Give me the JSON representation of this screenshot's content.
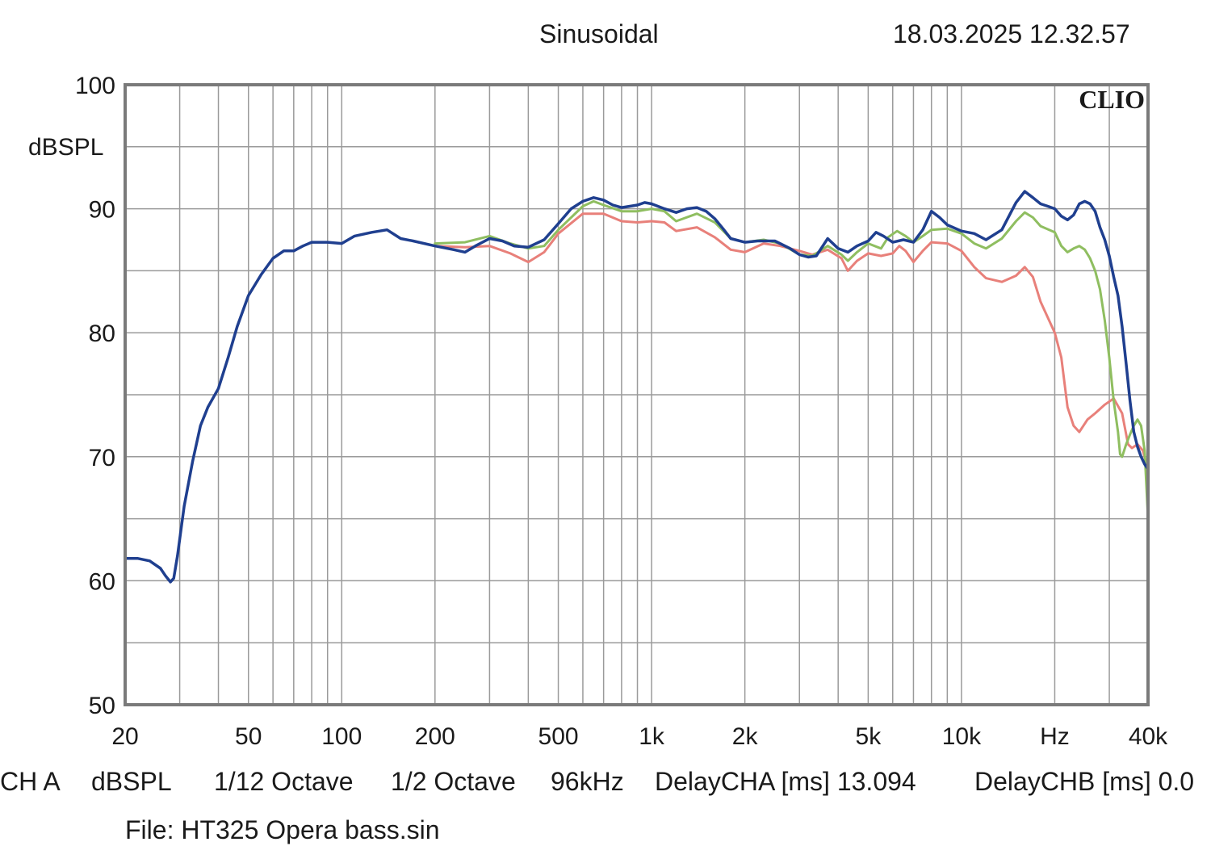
{
  "header": {
    "title": "Sinusoidal",
    "timestamp": "18.03.2025 12.32.57"
  },
  "brand": "CLIO",
  "footer": {
    "channel": "CH A",
    "unit": "dBSPL",
    "smoothing": "1/12 Octave",
    "resolution": "1/2 Octave",
    "sample_rate": "96kHz",
    "delay_cha": "DelayCHA [ms] 13.094",
    "delay_chb": "DelayCHB [ms] 0.0",
    "file": "File: HT325 Opera bass.sin"
  },
  "chart_data": {
    "type": "line",
    "title": "Sinusoidal",
    "xlabel": "Hz",
    "ylabel": "dBSPL",
    "xscale": "log",
    "xlim": [
      20,
      40000
    ],
    "ylim": [
      50,
      100
    ],
    "grid": true,
    "x_tick_labels": [
      {
        "value": 20,
        "label": "20"
      },
      {
        "value": 50,
        "label": "50"
      },
      {
        "value": 100,
        "label": "100"
      },
      {
        "value": 200,
        "label": "200"
      },
      {
        "value": 500,
        "label": "500"
      },
      {
        "value": 1000,
        "label": "1k"
      },
      {
        "value": 2000,
        "label": "2k"
      },
      {
        "value": 5000,
        "label": "5k"
      },
      {
        "value": 10000,
        "label": "10k"
      },
      {
        "value": 20000,
        "label": "Hz"
      },
      {
        "value": 40000,
        "label": "40k"
      }
    ],
    "y_ticks": [
      50,
      60,
      70,
      80,
      90,
      100
    ],
    "series": [
      {
        "color": "#e8807a",
        "points": [
          [
            200,
            87.0
          ],
          [
            250,
            86.9
          ],
          [
            300,
            87.0
          ],
          [
            350,
            86.4
          ],
          [
            400,
            85.7
          ],
          [
            450,
            86.5
          ],
          [
            500,
            88.0
          ],
          [
            600,
            89.6
          ],
          [
            700,
            89.6
          ],
          [
            800,
            89.0
          ],
          [
            900,
            88.9
          ],
          [
            1000,
            89.0
          ],
          [
            1100,
            88.9
          ],
          [
            1200,
            88.2
          ],
          [
            1400,
            88.5
          ],
          [
            1600,
            87.7
          ],
          [
            1800,
            86.7
          ],
          [
            2000,
            86.5
          ],
          [
            2300,
            87.2
          ],
          [
            2600,
            87.0
          ],
          [
            3000,
            86.6
          ],
          [
            3300,
            86.3
          ],
          [
            3700,
            86.7
          ],
          [
            4100,
            86.0
          ],
          [
            4300,
            85.0
          ],
          [
            4600,
            85.8
          ],
          [
            5000,
            86.4
          ],
          [
            5500,
            86.2
          ],
          [
            6000,
            86.4
          ],
          [
            6300,
            87.0
          ],
          [
            6600,
            86.6
          ],
          [
            7000,
            85.7
          ],
          [
            7500,
            86.6
          ],
          [
            8000,
            87.3
          ],
          [
            9000,
            87.2
          ],
          [
            10000,
            86.6
          ],
          [
            11000,
            85.3
          ],
          [
            12000,
            84.4
          ],
          [
            13500,
            84.1
          ],
          [
            15000,
            84.6
          ],
          [
            16000,
            85.3
          ],
          [
            17000,
            84.5
          ],
          [
            18000,
            82.5
          ],
          [
            20000,
            80.0
          ],
          [
            21000,
            78.0
          ],
          [
            22000,
            74.0
          ],
          [
            23000,
            72.5
          ],
          [
            24000,
            72.0
          ],
          [
            25500,
            73.0
          ],
          [
            27000,
            73.5
          ],
          [
            29000,
            74.2
          ],
          [
            31000,
            74.7
          ],
          [
            33000,
            73.5
          ],
          [
            34500,
            71.0
          ],
          [
            35500,
            70.7
          ],
          [
            37000,
            71.0
          ],
          [
            38500,
            70.5
          ],
          [
            40000,
            69.0
          ]
        ]
      },
      {
        "color": "#8fbe60",
        "points": [
          [
            200,
            87.2
          ],
          [
            250,
            87.3
          ],
          [
            300,
            87.8
          ],
          [
            350,
            87.2
          ],
          [
            400,
            86.8
          ],
          [
            450,
            87.0
          ],
          [
            500,
            88.3
          ],
          [
            600,
            90.2
          ],
          [
            650,
            90.6
          ],
          [
            700,
            90.3
          ],
          [
            800,
            89.8
          ],
          [
            900,
            89.8
          ],
          [
            1000,
            90.0
          ],
          [
            1100,
            89.8
          ],
          [
            1200,
            89.0
          ],
          [
            1400,
            89.6
          ],
          [
            1600,
            88.9
          ],
          [
            1800,
            87.6
          ],
          [
            2000,
            87.3
          ],
          [
            2300,
            87.5
          ],
          [
            2600,
            87.2
          ],
          [
            3000,
            86.3
          ],
          [
            3300,
            86.2
          ],
          [
            3700,
            87.0
          ],
          [
            4100,
            86.3
          ],
          [
            4300,
            85.8
          ],
          [
            4600,
            86.5
          ],
          [
            5000,
            87.2
          ],
          [
            5500,
            86.8
          ],
          [
            5800,
            87.7
          ],
          [
            6200,
            88.2
          ],
          [
            6600,
            87.8
          ],
          [
            7000,
            87.3
          ],
          [
            7500,
            87.8
          ],
          [
            8000,
            88.3
          ],
          [
            9000,
            88.4
          ],
          [
            10000,
            88.0
          ],
          [
            11000,
            87.2
          ],
          [
            12000,
            86.8
          ],
          [
            13500,
            87.6
          ],
          [
            15000,
            89.0
          ],
          [
            16000,
            89.7
          ],
          [
            17000,
            89.3
          ],
          [
            18000,
            88.6
          ],
          [
            20000,
            88.1
          ],
          [
            21000,
            87.0
          ],
          [
            22000,
            86.5
          ],
          [
            23000,
            86.8
          ],
          [
            24000,
            87.0
          ],
          [
            25000,
            86.7
          ],
          [
            26000,
            86.0
          ],
          [
            27000,
            85.0
          ],
          [
            28000,
            83.5
          ],
          [
            29000,
            81.0
          ],
          [
            30000,
            78.0
          ],
          [
            31000,
            74.5
          ],
          [
            32000,
            72.0
          ],
          [
            32500,
            70.2
          ],
          [
            33000,
            70.0
          ],
          [
            34000,
            71.0
          ],
          [
            35000,
            71.8
          ],
          [
            36000,
            72.5
          ],
          [
            37000,
            73.0
          ],
          [
            38000,
            72.5
          ],
          [
            39000,
            70.5
          ],
          [
            40000,
            65.0
          ]
        ]
      },
      {
        "color": "#1f3f8f",
        "points": [
          [
            20,
            61.8
          ],
          [
            22,
            61.8
          ],
          [
            24,
            61.6
          ],
          [
            26,
            61.0
          ],
          [
            27,
            60.4
          ],
          [
            28,
            59.9
          ],
          [
            28.7,
            60.2
          ],
          [
            29.5,
            62.0
          ],
          [
            31,
            66.0
          ],
          [
            33,
            69.6
          ],
          [
            35,
            72.5
          ],
          [
            37,
            74.0
          ],
          [
            40,
            75.5
          ],
          [
            43,
            78.0
          ],
          [
            46,
            80.5
          ],
          [
            50,
            83.0
          ],
          [
            55,
            84.7
          ],
          [
            60,
            86.0
          ],
          [
            65,
            86.6
          ],
          [
            70,
            86.6
          ],
          [
            75,
            87.0
          ],
          [
            80,
            87.3
          ],
          [
            90,
            87.3
          ],
          [
            100,
            87.2
          ],
          [
            110,
            87.8
          ],
          [
            125,
            88.1
          ],
          [
            140,
            88.3
          ],
          [
            155,
            87.6
          ],
          [
            170,
            87.4
          ],
          [
            200,
            87.0
          ],
          [
            230,
            86.7
          ],
          [
            250,
            86.5
          ],
          [
            270,
            87.0
          ],
          [
            300,
            87.6
          ],
          [
            330,
            87.4
          ],
          [
            360,
            87.0
          ],
          [
            400,
            86.9
          ],
          [
            450,
            87.5
          ],
          [
            500,
            88.8
          ],
          [
            550,
            90.0
          ],
          [
            600,
            90.6
          ],
          [
            650,
            90.9
          ],
          [
            700,
            90.7
          ],
          [
            750,
            90.3
          ],
          [
            800,
            90.1
          ],
          [
            900,
            90.3
          ],
          [
            950,
            90.5
          ],
          [
            1000,
            90.4
          ],
          [
            1100,
            90.0
          ],
          [
            1200,
            89.7
          ],
          [
            1300,
            90.0
          ],
          [
            1400,
            90.1
          ],
          [
            1500,
            89.8
          ],
          [
            1600,
            89.2
          ],
          [
            1700,
            88.4
          ],
          [
            1800,
            87.6
          ],
          [
            2000,
            87.3
          ],
          [
            2200,
            87.4
          ],
          [
            2500,
            87.4
          ],
          [
            2800,
            86.8
          ],
          [
            3000,
            86.3
          ],
          [
            3200,
            86.1
          ],
          [
            3400,
            86.2
          ],
          [
            3700,
            87.6
          ],
          [
            4000,
            86.8
          ],
          [
            4300,
            86.5
          ],
          [
            4600,
            87.0
          ],
          [
            5000,
            87.4
          ],
          [
            5300,
            88.1
          ],
          [
            5600,
            87.8
          ],
          [
            6000,
            87.3
          ],
          [
            6500,
            87.5
          ],
          [
            7000,
            87.3
          ],
          [
            7500,
            88.3
          ],
          [
            8000,
            89.8
          ],
          [
            8500,
            89.3
          ],
          [
            9000,
            88.7
          ],
          [
            10000,
            88.2
          ],
          [
            11000,
            88.0
          ],
          [
            12000,
            87.5
          ],
          [
            13500,
            88.3
          ],
          [
            15000,
            90.5
          ],
          [
            16000,
            91.4
          ],
          [
            17000,
            90.9
          ],
          [
            18000,
            90.4
          ],
          [
            19000,
            90.2
          ],
          [
            20000,
            90.0
          ],
          [
            21000,
            89.4
          ],
          [
            22000,
            89.1
          ],
          [
            23000,
            89.5
          ],
          [
            24000,
            90.4
          ],
          [
            25000,
            90.6
          ],
          [
            26000,
            90.4
          ],
          [
            27000,
            89.8
          ],
          [
            28000,
            88.5
          ],
          [
            29000,
            87.5
          ],
          [
            30000,
            86.2
          ],
          [
            31000,
            84.5
          ],
          [
            32000,
            83.0
          ],
          [
            33000,
            80.5
          ],
          [
            34000,
            77.5
          ],
          [
            35000,
            74.5
          ],
          [
            36000,
            72.0
          ],
          [
            37000,
            70.8
          ],
          [
            38000,
            70.0
          ],
          [
            39000,
            69.4
          ],
          [
            40000,
            69.0
          ]
        ]
      }
    ]
  }
}
